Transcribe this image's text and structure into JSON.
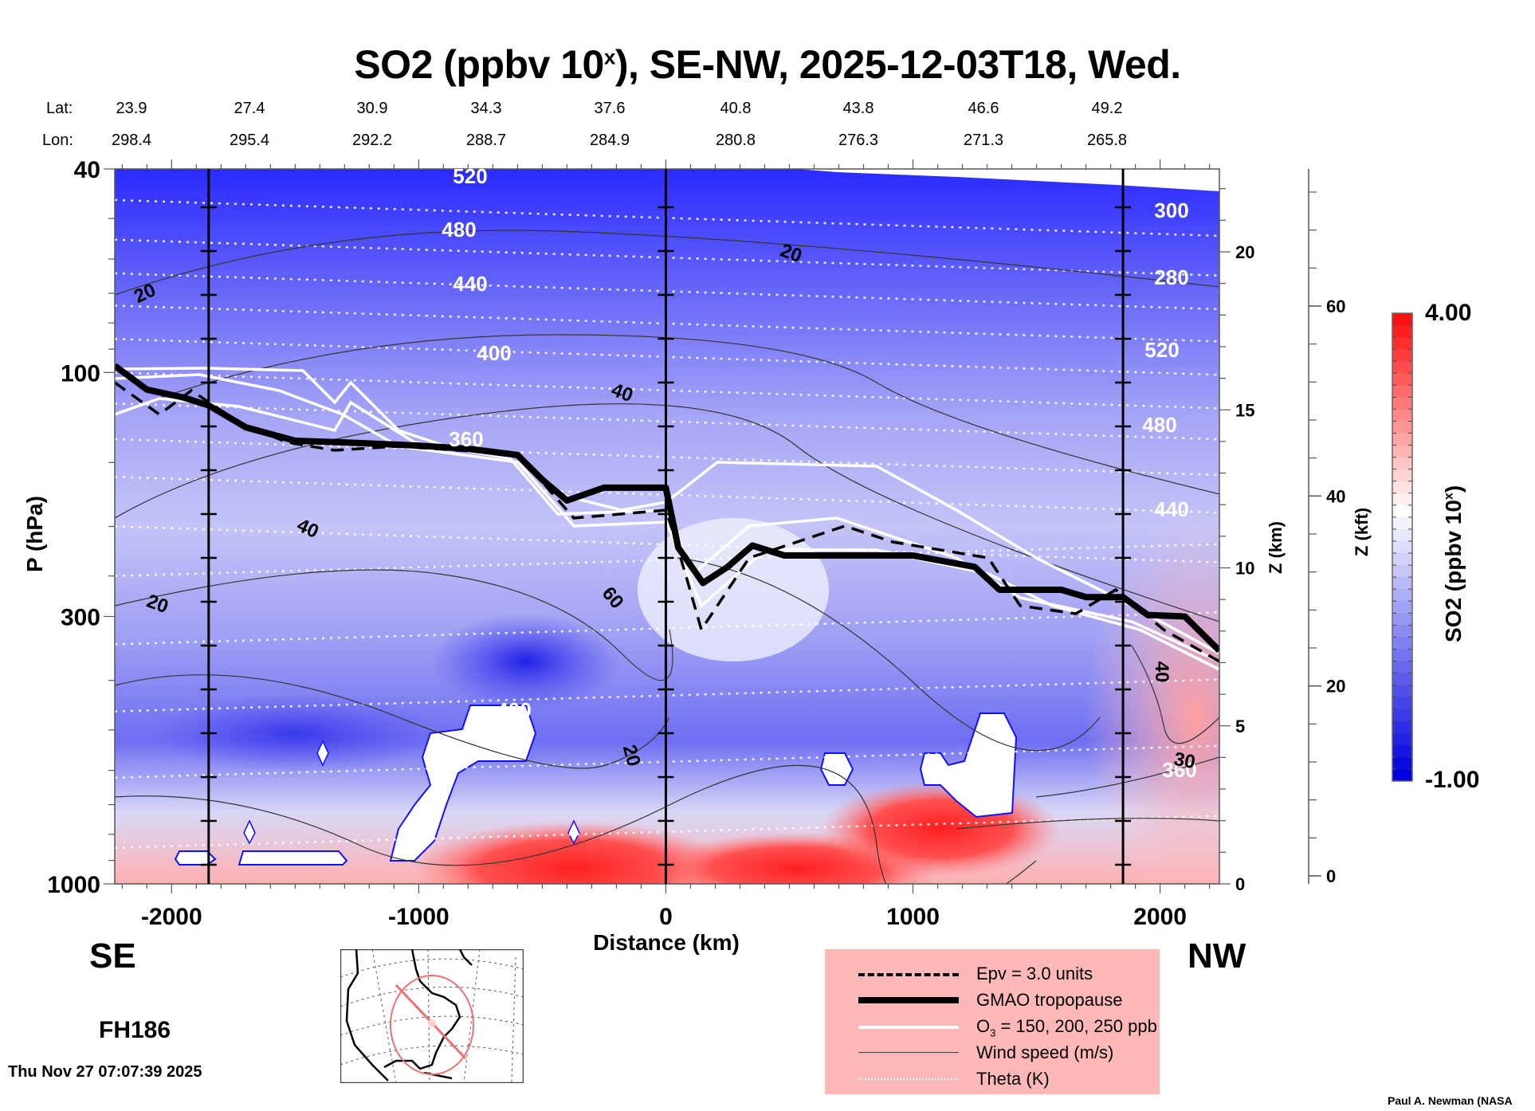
{
  "chart_data": {
    "type": "heatmap",
    "title": "SO2 (ppbv 10^x), SE-NW, 2025-12-03T18, Wed.",
    "title_main": "SO2 (ppbv 10",
    "title_sup": "x",
    "title_rest": "), SE-NW, 2025-12-03T18, Wed.",
    "xlabel": "Distance (km)",
    "ylabel": "P (hPa)",
    "y2label": "Z (km)",
    "y3label": "Z (kft)",
    "colorbar_label": "SO2 (ppbv 10x)",
    "colorbar_label_main": "SO2 (ppbv 10",
    "colorbar_label_sup": "x",
    "colorbar_label_end": ")",
    "xlim": [
      -2230,
      2240
    ],
    "ylim_hPa": [
      1000,
      40
    ],
    "x_ticks": [
      -2000,
      -1000,
      0,
      1000,
      2000
    ],
    "x_tick_labels": [
      "-2000",
      "-1000",
      "0",
      "1000",
      "2000"
    ],
    "y_ticks_hPa": [
      40,
      100,
      300,
      1000
    ],
    "y_tick_labels": [
      "40",
      "100",
      "300",
      "1000"
    ],
    "z_km_ticks": [
      0,
      5,
      10,
      15,
      20
    ],
    "z_km_tick_labels": [
      "0",
      "5",
      "10",
      "15",
      "20"
    ],
    "z_kft_ticks": [
      0,
      20,
      40,
      60
    ],
    "z_kft_tick_labels": [
      "0",
      "20",
      "40",
      "60"
    ],
    "colorbar": {
      "min": -1.0,
      "max": 4.0,
      "min_label": "-1.00",
      "max_label": "4.00",
      "low_color": "#0000e0",
      "mid_color": "#ffffff",
      "high_color": "#ff1010",
      "levels": 39
    },
    "vertical_reference_lines_km": [
      -1850,
      0,
      1850
    ],
    "lat_label": "Lat:",
    "lon_label": "Lon:",
    "lat": [
      "23.9",
      "27.4",
      "30.9",
      "34.3",
      "37.6",
      "40.8",
      "43.8",
      "46.6",
      "49.2"
    ],
    "lon": [
      "298.4",
      "295.4",
      "292.2",
      "288.7",
      "284.9",
      "280.8",
      "276.3",
      "271.3",
      "265.8"
    ],
    "theta_contour_labels": [
      "520",
      "480",
      "440",
      "400",
      "360",
      "300",
      "280",
      "520",
      "480",
      "440",
      "400",
      "360"
    ],
    "wind_contour_labels": [
      "20",
      "20",
      "40",
      "40",
      "60",
      "20",
      "20",
      "40",
      "30"
    ],
    "tropopause_profile_hPa": [
      [
        -2230,
        97
      ],
      [
        -2100,
        108
      ],
      [
        -1950,
        112
      ],
      [
        -1850,
        116
      ],
      [
        -1700,
        128
      ],
      [
        -1500,
        136
      ],
      [
        -1300,
        137
      ],
      [
        -1000,
        139
      ],
      [
        -800,
        141
      ],
      [
        -600,
        145
      ],
      [
        -500,
        162
      ],
      [
        -400,
        178
      ],
      [
        -250,
        168
      ],
      [
        0,
        168
      ],
      [
        50,
        220
      ],
      [
        150,
        258
      ],
      [
        250,
        240
      ],
      [
        350,
        218
      ],
      [
        480,
        228
      ],
      [
        1000,
        228
      ],
      [
        1250,
        240
      ],
      [
        1350,
        266
      ],
      [
        1600,
        266
      ],
      [
        1700,
        275
      ],
      [
        1850,
        275
      ],
      [
        1950,
        298
      ],
      [
        2100,
        300
      ],
      [
        2240,
        350
      ]
    ],
    "legend": [
      {
        "label": "Epv = 3.0 units",
        "style": "dashed"
      },
      {
        "label": "GMAO tropopause",
        "style": "thick"
      },
      {
        "label_main": "O",
        "label_sub": "3",
        "label_rest": " = 150, 200, 250 ppb",
        "style": "white"
      },
      {
        "label": "Wind speed (m/s)",
        "style": "thin"
      },
      {
        "label": "Theta (K)",
        "style": "dotted"
      }
    ],
    "legend_placement": "bottom-center-right"
  },
  "annotations": {
    "left_dir": "SE",
    "right_dir": "NW",
    "forecast_hour": "FH186",
    "timestamp": "Thu Nov 27 07:07:39 2025",
    "credit": "Paul A. Newman (NASA"
  }
}
